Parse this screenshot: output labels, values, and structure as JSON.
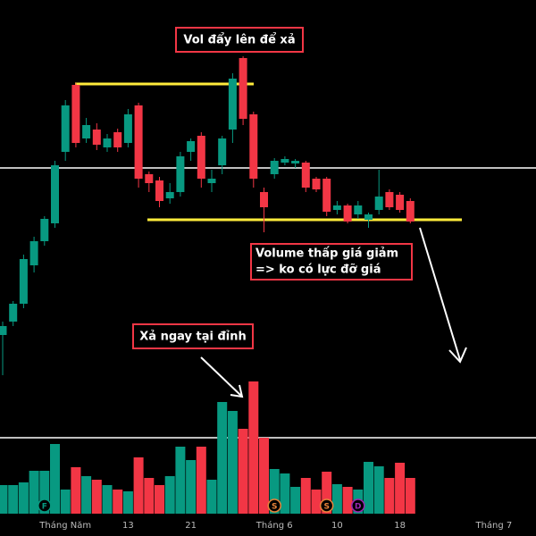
{
  "chart_data": {
    "type": "candlestick",
    "annotations": [
      "Vol đẩy lên để xả",
      "Volume thấp giá giảm",
      "=> ko có lực đỡ giá",
      "Xả ngay tại đỉnh"
    ],
    "open": [
      125,
      140,
      160,
      203,
      230,
      250,
      330,
      405,
      345,
      355,
      335,
      352,
      340,
      382,
      305,
      298,
      278,
      285,
      330,
      348,
      295,
      315,
      355,
      435,
      372,
      285,
      305,
      318,
      317,
      318,
      300,
      300,
      265,
      270,
      260,
      254,
      265,
      285,
      282,
      275
    ],
    "high": [
      140,
      163,
      215,
      235,
      258,
      320,
      388,
      407,
      368,
      362,
      350,
      356,
      378,
      385,
      308,
      302,
      295,
      330,
      345,
      352,
      310,
      348,
      418,
      437,
      375,
      290,
      323,
      325,
      322,
      320,
      302,
      302,
      275,
      272,
      275,
      262,
      310,
      288,
      285,
      278
    ],
    "low": [
      80,
      135,
      155,
      195,
      225,
      245,
      320,
      335,
      340,
      332,
      330,
      330,
      335,
      290,
      285,
      268,
      272,
      280,
      320,
      290,
      285,
      305,
      340,
      360,
      290,
      240,
      300,
      315,
      312,
      285,
      285,
      258,
      260,
      250,
      255,
      245,
      260,
      265,
      262,
      250
    ],
    "close": [
      135,
      160,
      210,
      230,
      255,
      315,
      382,
      340,
      360,
      338,
      345,
      335,
      372,
      300,
      295,
      275,
      285,
      325,
      342,
      300,
      300,
      345,
      412,
      367,
      300,
      268,
      320,
      322,
      320,
      290,
      288,
      263,
      270,
      252,
      270,
      260,
      280,
      268,
      265,
      252
    ],
    "volume": [
      32,
      32,
      35,
      48,
      48,
      78,
      27,
      52,
      42,
      38,
      32,
      27,
      25,
      63,
      40,
      32,
      42,
      75,
      60,
      75,
      38,
      125,
      115,
      95,
      148,
      85,
      50,
      45,
      30,
      40,
      27,
      47,
      33,
      30,
      27,
      58,
      53,
      40,
      57,
      40
    ],
    "ylim": [
      0,
      500
    ],
    "vlim": [
      0,
      150
    ],
    "up_color": "#089981",
    "down_color": "#f23645",
    "xlabels": [
      {
        "index": 6,
        "label": "Tháng Năm"
      },
      {
        "index": 12,
        "label": "13"
      },
      {
        "index": 18,
        "label": "21"
      },
      {
        "index": 26,
        "label": "Tháng 6"
      },
      {
        "index": 32,
        "label": "10"
      },
      {
        "index": 38,
        "label": "18"
      },
      {
        "index": 47,
        "label": "Tháng 7"
      }
    ],
    "events": [
      {
        "index": 4,
        "label": "F",
        "color": "#089981"
      },
      {
        "index": 26,
        "label": "S",
        "color": "#e8833a"
      },
      {
        "index": 31,
        "label": "S",
        "color": "#e8833a"
      },
      {
        "index": 34,
        "label": "D",
        "color": "#9c27b0"
      }
    ]
  }
}
